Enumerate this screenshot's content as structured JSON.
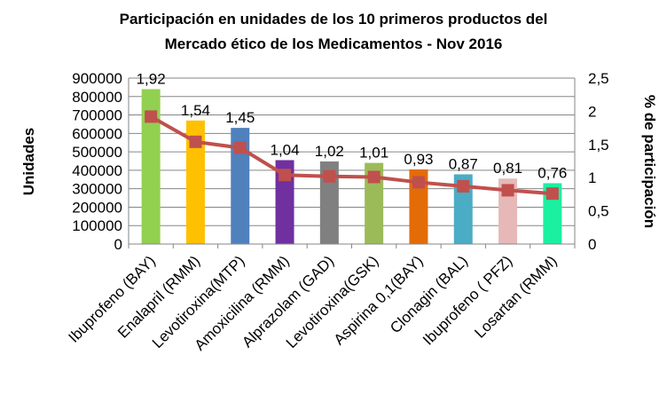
{
  "chart_data": {
    "type": "bar",
    "title_lines": [
      "Participación en unidades de los 10 primeros productos del",
      "Mercado ético de los Medicamentos  - Nov 2016"
    ],
    "categories": [
      "Ibuprofeno (BAY)",
      "Enalapril (RMM)",
      "Levotiroxina(MTP)",
      "Amoxicilina (RMM)",
      "Alprazolam (GAD)",
      "Levotiroxina(GSK)",
      "Aspirina 0,1(BAY)",
      "Clonagin (BAL)",
      "Ibuprofeno ( PFZ)",
      "Losartan (RMM)"
    ],
    "bar_values": [
      840000,
      670000,
      630000,
      455000,
      448000,
      440000,
      405000,
      378000,
      355000,
      330000
    ],
    "bar_colors": [
      "#92d050",
      "#ffc000",
      "#4f81bd",
      "#7030a0",
      "#808080",
      "#9bbb59",
      "#e36c09",
      "#4bacc6",
      "#e6b9b8",
      "#1af0a0"
    ],
    "line_values": [
      1.92,
      1.54,
      1.45,
      1.04,
      1.02,
      1.01,
      0.93,
      0.87,
      0.81,
      0.76
    ],
    "line_labels": [
      "1,92",
      "1,54",
      "1,45",
      "1,04",
      "1,02",
      "1,01",
      "0,93",
      "0,87",
      "0,81",
      "0,76"
    ],
    "line_color": "#c0504d",
    "ylabel": "Unidades",
    "ylabel2": "% de participación",
    "ylim": [
      0,
      900000
    ],
    "ylim2": [
      0,
      2.5
    ],
    "yticks": [
      "0",
      "100000",
      "200000",
      "300000",
      "400000",
      "500000",
      "600000",
      "700000",
      "800000",
      "900000"
    ],
    "yticks2": [
      "0",
      "0,5",
      "1",
      "1,5",
      "2",
      "2,5"
    ],
    "grid": true
  }
}
